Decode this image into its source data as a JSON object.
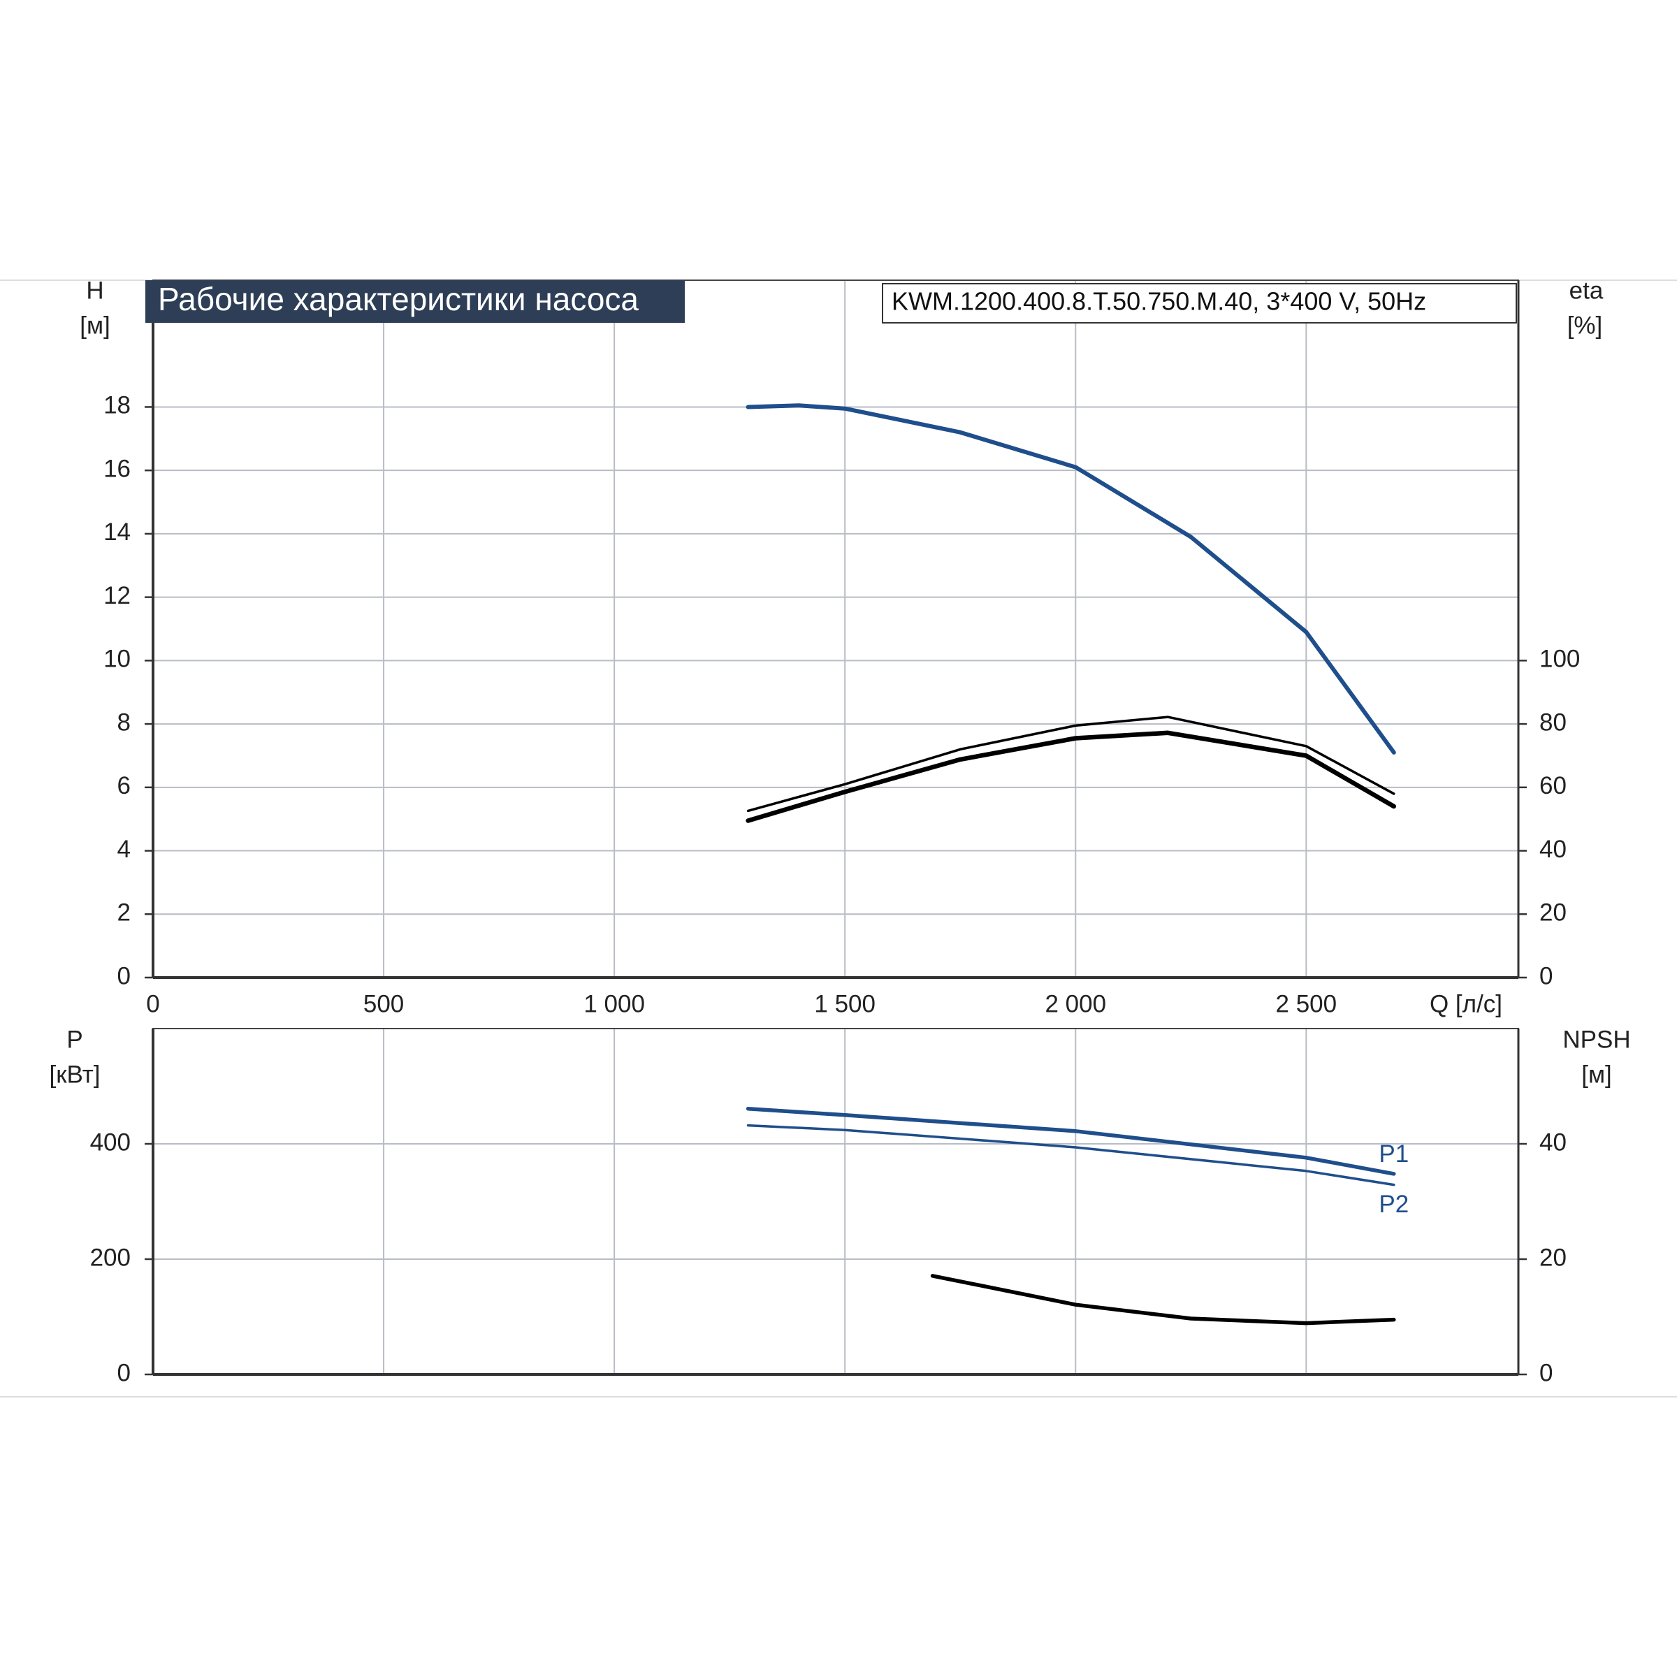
{
  "chart_data": [
    {
      "type": "line",
      "title": "Рабочие характеристики насоса",
      "subtitle": "KWM.1200.400.8.T.50.750.M.40, 3*400 V, 50Hz",
      "x_label": "Q [л/с]",
      "y_label": [
        "H",
        "[м]"
      ],
      "y2_label": [
        "eta",
        "[%]"
      ],
      "xlim": [
        0,
        2960
      ],
      "xticks": [
        0,
        500,
        {
          "value": 1000,
          "label": "1 000"
        },
        {
          "value": 1500,
          "label": "1 500"
        },
        {
          "value": 2000,
          "label": "2 000"
        },
        {
          "value": 2500,
          "label": "2 500"
        }
      ],
      "ylim": [
        0,
        22
      ],
      "yticks": [
        0,
        2,
        4,
        6,
        8,
        10,
        12,
        14,
        16,
        18
      ],
      "y2lim": [
        0,
        220
      ],
      "y2ticks": [
        0,
        20,
        40,
        60,
        80,
        100
      ],
      "grid": true,
      "series": [
        {
          "color": "#1f4e8c",
          "axis": "y",
          "x": [
            1290,
            1400,
            1500,
            1750,
            2000,
            2250,
            2500,
            2690
          ],
          "values": [
            18,
            18.05,
            17.95,
            17.2,
            16.1,
            13.9,
            10.9,
            7.1
          ]
        },
        {
          "color": "#000000",
          "axis": "y2",
          "x": [
            1290,
            1500,
            1750,
            2000,
            2200,
            2500,
            2690
          ],
          "values": [
            52.6,
            61,
            72,
            79.5,
            82.2,
            73,
            58
          ]
        },
        {
          "color": "#000000",
          "axis": "y2",
          "x": [
            1290,
            1500,
            1750,
            2000,
            2200,
            2500,
            2690
          ],
          "values": [
            49.5,
            58.6,
            68.8,
            75.5,
            77.2,
            70,
            54
          ]
        }
      ]
    },
    {
      "type": "line",
      "y_label": [
        "P",
        "[кВт]"
      ],
      "y2_label": [
        "NPSH",
        "[м]"
      ],
      "xlim": [
        0,
        2960
      ],
      "xticks": [
        0,
        500,
        1000,
        1500,
        2000,
        2500
      ],
      "ylim": [
        0,
        600
      ],
      "yticks": [
        0,
        200,
        400
      ],
      "y2lim": [
        0,
        60
      ],
      "y2ticks": [
        0,
        20,
        40
      ],
      "grid": true,
      "series": [
        {
          "name": "P1",
          "color": "#1f4e8c",
          "axis": "y",
          "x": [
            1290,
            1500,
            2000,
            2500,
            2690
          ],
          "values": [
            461,
            450,
            422,
            376,
            348
          ]
        },
        {
          "name": "P2",
          "color": "#1f4e8c",
          "axis": "y",
          "x": [
            1290,
            1500,
            2000,
            2500,
            2690
          ],
          "values": [
            432,
            424,
            394,
            353,
            329
          ]
        },
        {
          "color": "#000000",
          "axis": "y2",
          "x": [
            1690,
            2000,
            2250,
            2500,
            2690
          ],
          "values": [
            17.1,
            12.1,
            9.7,
            8.9,
            9.5
          ]
        }
      ]
    }
  ]
}
